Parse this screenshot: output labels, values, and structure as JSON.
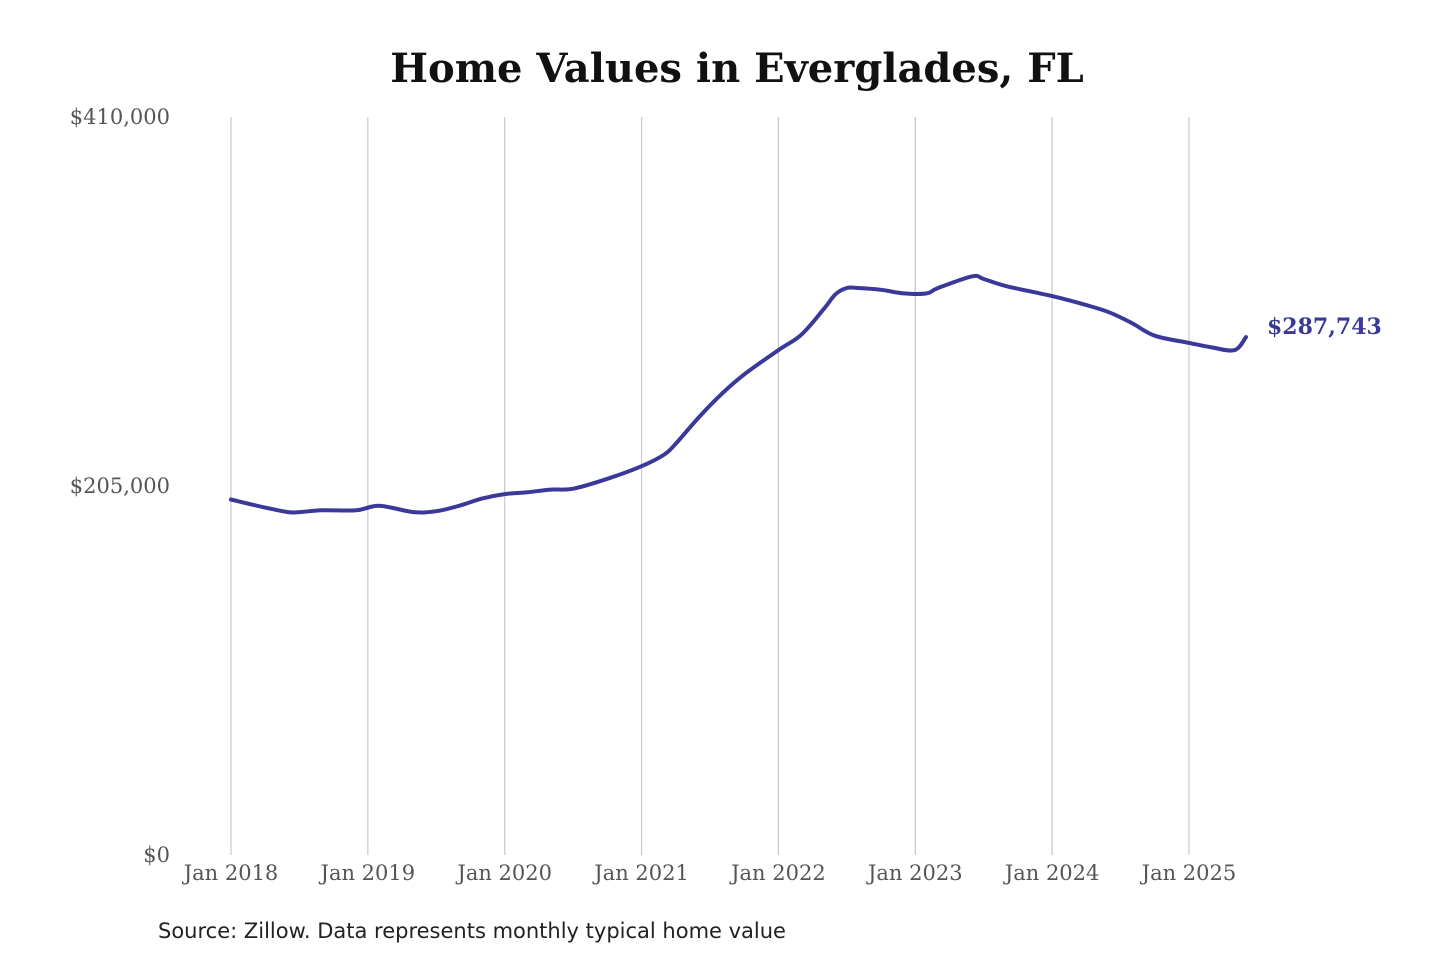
{
  "chart_data": {
    "type": "line",
    "title": "Home Values in Everglades, FL",
    "source": "Source: Zillow. Data represents monthly typical home value",
    "ylim": [
      0,
      410000
    ],
    "yticks": [
      {
        "value": 0,
        "label": "$0"
      },
      {
        "value": 205000,
        "label": "$205,000"
      },
      {
        "value": 410000,
        "label": "$410,000"
      }
    ],
    "xticks": [
      {
        "value": "2018-01",
        "label": "Jan 2018"
      },
      {
        "value": "2019-01",
        "label": "Jan 2019"
      },
      {
        "value": "2020-01",
        "label": "Jan 2020"
      },
      {
        "value": "2021-01",
        "label": "Jan 2021"
      },
      {
        "value": "2022-01",
        "label": "Jan 2022"
      },
      {
        "value": "2023-01",
        "label": "Jan 2023"
      },
      {
        "value": "2024-01",
        "label": "Jan 2024"
      },
      {
        "value": "2025-01",
        "label": "Jan 2025"
      }
    ],
    "grid": "vertical",
    "legend": "none",
    "colors": {
      "line": "#3a3898",
      "grid": "#c8c8c8"
    },
    "end_label": "$287,743",
    "series": [
      {
        "x": [
          "2018-01",
          "2018-04",
          "2018-06",
          "2018-07",
          "2018-09",
          "2018-12",
          "2019-02",
          "2019-05",
          "2019-07",
          "2019-09",
          "2019-11",
          "2020-01",
          "2020-03",
          "2020-05",
          "2020-07",
          "2020-10",
          "2021-01",
          "2021-03",
          "2021-04",
          "2021-06",
          "2021-08",
          "2021-10",
          "2022-01",
          "2022-03",
          "2022-05",
          "2022-06",
          "2022-07",
          "2022-08",
          "2022-10",
          "2022-12",
          "2023-02",
          "2023-03",
          "2023-06",
          "2023-07",
          "2023-09",
          "2024-01",
          "2024-04",
          "2024-06",
          "2024-08",
          "2024-10",
          "2025-01",
          "2025-03",
          "2025-05",
          "2025-06"
        ],
        "values": [
          197500,
          193000,
          190500,
          190500,
          191500,
          191500,
          194000,
          190500,
          191000,
          194000,
          198000,
          200500,
          201500,
          203000,
          203500,
          209000,
          216000,
          222500,
          228500,
          243000,
          256000,
          267000,
          280500,
          289000,
          303500,
          311500,
          315000,
          315000,
          314000,
          312000,
          312000,
          315000,
          321500,
          320000,
          316000,
          310500,
          305500,
          301500,
          295500,
          288500,
          284500,
          282000,
          280500,
          287743
        ]
      }
    ]
  }
}
